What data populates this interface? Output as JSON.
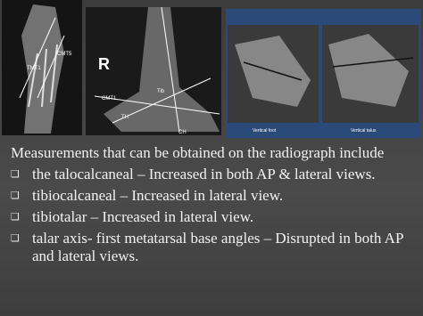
{
  "images": [
    {
      "labels": [
        "CMT5",
        "TMT1"
      ]
    },
    {
      "labels": [
        "R",
        "CMT1",
        "TH",
        "CH",
        "Tib"
      ]
    },
    {
      "labels": [
        "Vertical foot",
        "Vertical talus"
      ]
    }
  ],
  "text": {
    "intro": "Measurements that can be obtained on the radiograph include",
    "bullets": [
      "the talocalcaneal – Increased in both AP & lateral views.",
      "tibiocalcaneal – Increased in lateral view.",
      "tibiotalar – Increased in lateral view.",
      "talar axis- first metatarsal base angles – Disrupted in both AP and lateral views."
    ]
  }
}
